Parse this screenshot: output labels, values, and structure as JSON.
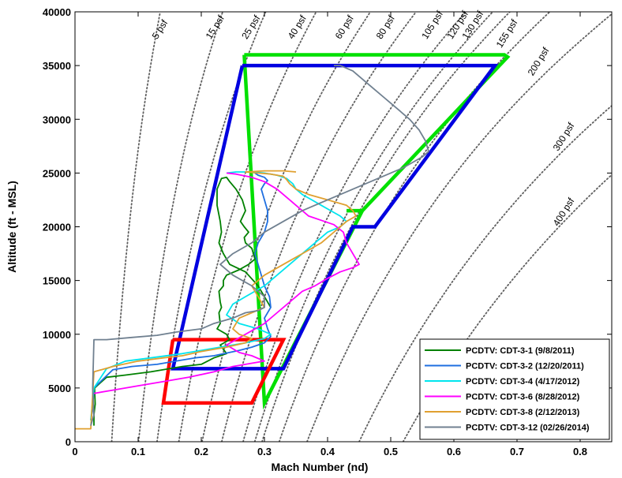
{
  "chart_data": {
    "type": "line",
    "title": "",
    "xlabel": "Mach Number (nd)",
    "ylabel": "Altitude (ft - MSL)",
    "xlim": [
      0,
      0.85
    ],
    "ylim": [
      0,
      40000
    ],
    "xticks": [
      "0",
      "0.1",
      "0.2",
      "0.3",
      "0.4",
      "0.5",
      "0.6",
      "0.7",
      "0.8"
    ],
    "xtick_values": [
      0,
      0.1,
      0.2,
      0.3,
      0.4,
      0.5,
      0.6,
      0.7,
      0.8
    ],
    "yticks": [
      "0",
      "5000",
      "10000",
      "15000",
      "20000",
      "25000",
      "30000",
      "35000",
      "40000"
    ],
    "ytick_values": [
      0,
      5000,
      10000,
      15000,
      20000,
      25000,
      30000,
      35000,
      40000
    ],
    "grid": false,
    "legend_position": "bottom-right",
    "dynamic_pressure_lines": [
      {
        "label": "5 psf",
        "q": 5,
        "label_x": 0.13,
        "label_y": 37400,
        "label_angle": -58
      },
      {
        "label": "15 psf",
        "q": 15,
        "label_x": 0.215,
        "label_y": 37400,
        "label_angle": -58
      },
      {
        "label": "25 psf",
        "q": 25,
        "label_x": 0.272,
        "label_y": 37400,
        "label_angle": -58
      },
      {
        "label": "40 psf",
        "q": 40,
        "label_x": 0.345,
        "label_y": 37400,
        "label_angle": -58
      },
      {
        "label": "60 psf",
        "q": 60,
        "label_x": 0.42,
        "label_y": 37400,
        "label_angle": -58
      },
      {
        "label": "80 psf",
        "q": 80,
        "label_x": 0.485,
        "label_y": 37400,
        "label_angle": -58
      },
      {
        "label": "105 psf",
        "q": 105,
        "label_x": 0.557,
        "label_y": 37400,
        "label_angle": -58
      },
      {
        "label": "120 psf",
        "q": 120,
        "label_x": 0.597,
        "label_y": 37400,
        "label_angle": -58
      },
      {
        "label": "130 psf",
        "q": 130,
        "label_x": 0.621,
        "label_y": 37400,
        "label_angle": -58
      },
      {
        "label": "155 psf",
        "q": 155,
        "label_x": 0.675,
        "label_y": 36600,
        "label_angle": -58
      },
      {
        "label": "200 psf",
        "q": 200,
        "label_x": 0.725,
        "label_y": 34000,
        "label_angle": -58
      },
      {
        "label": "300 psf",
        "q": 300,
        "label_x": 0.765,
        "label_y": 27000,
        "label_angle": -58
      },
      {
        "label": "400 psf",
        "q": 400,
        "label_x": 0.765,
        "label_y": 20000,
        "label_angle": -58
      }
    ],
    "envelopes": [
      {
        "color": "#00e000",
        "x": [
          0.268,
          0.68,
          0.685,
          0.455,
          0.43,
          0.455,
          0.3,
          0.268
        ],
        "y": [
          36000,
          36000,
          35800,
          21500,
          21500,
          21500,
          3600,
          36000
        ]
      },
      {
        "color": "#0000e0",
        "x": [
          0.265,
          0.665,
          0.475,
          0.44,
          0.33,
          0.155,
          0.265
        ],
        "y": [
          35000,
          35000,
          20000,
          20000,
          6800,
          6800,
          35000
        ]
      },
      {
        "color": "#ff0000",
        "x": [
          0.155,
          0.33,
          0.28,
          0.14,
          0.155
        ],
        "y": [
          9500,
          9500,
          3600,
          3600,
          9500
        ]
      }
    ],
    "series": [
      {
        "name": "PCDTV: CDT-3-1 (9/8/2011)",
        "color": "#008000",
        "x": [
          0.03,
          0.03,
          0.032,
          0.031,
          0.05,
          0.08,
          0.12,
          0.17,
          0.2,
          0.22,
          0.24,
          0.235,
          0.23,
          0.245,
          0.24,
          0.225,
          0.23,
          0.228,
          0.232,
          0.23,
          0.228,
          0.235,
          0.235,
          0.24,
          0.26,
          0.275,
          0.285,
          0.28,
          0.27,
          0.268,
          0.275,
          0.268,
          0.262,
          0.27,
          0.265,
          0.255,
          0.245,
          0.24,
          0.232,
          0.225,
          0.225,
          0.23,
          0.232,
          0.228,
          0.235,
          0.245,
          0.27,
          0.29,
          0.3,
          0.31
        ],
        "y": [
          1500,
          2500,
          3500,
          5000,
          6000,
          6200,
          6500,
          7000,
          7200,
          7800,
          8200,
          8600,
          9000,
          9500,
          10000,
          10500,
          11000,
          12000,
          12500,
          13000,
          14000,
          14500,
          15000,
          15500,
          16000,
          16500,
          17000,
          18000,
          18500,
          19000,
          19500,
          20000,
          20500,
          21500,
          22500,
          23500,
          24200,
          24600,
          24500,
          23500,
          22000,
          20500,
          19500,
          18500,
          17500,
          16500,
          15800,
          14500,
          13500,
          12500
        ]
      },
      {
        "name": "PCDTV: CDT-3-2 (12/20/2011)",
        "color": "#1f6fe0",
        "x": [
          0.025,
          0.028,
          0.03,
          0.06,
          0.09,
          0.13,
          0.16,
          0.19,
          0.22,
          0.26,
          0.28,
          0.3,
          0.31,
          0.305,
          0.3,
          0.31,
          0.308,
          0.3,
          0.295,
          0.29,
          0.285,
          0.29,
          0.3,
          0.305,
          0.305,
          0.3,
          0.295,
          0.3,
          0.305,
          0.3,
          0.29,
          0.285
        ],
        "y": [
          2000,
          3000,
          5000,
          6700,
          7000,
          7200,
          7500,
          7800,
          8000,
          8500,
          8800,
          9200,
          9800,
          10500,
          11500,
          12500,
          13500,
          14500,
          15500,
          16500,
          17500,
          18500,
          19500,
          20500,
          21500,
          22500,
          23500,
          24000,
          24300,
          24600,
          24800,
          25000
        ]
      },
      {
        "name": "PCDTV: CDT-3-4 (4/17/2012)",
        "color": "#00e5ee",
        "x": [
          0.025,
          0.03,
          0.05,
          0.08,
          0.12,
          0.17,
          0.2,
          0.23,
          0.27,
          0.3,
          0.31,
          0.29,
          0.26,
          0.24,
          0.25,
          0.27,
          0.3,
          0.32,
          0.34,
          0.36,
          0.38,
          0.4,
          0.42,
          0.43,
          0.42,
          0.405,
          0.39,
          0.375,
          0.36,
          0.35,
          0.345,
          0.335,
          0.32,
          0.3,
          0.28,
          0.255,
          0.24
        ],
        "y": [
          2000,
          5000,
          6800,
          7500,
          7800,
          8200,
          8500,
          8800,
          9200,
          9600,
          10000,
          10500,
          11000,
          11800,
          12800,
          13500,
          14500,
          15500,
          16500,
          17500,
          18500,
          19500,
          20000,
          20500,
          21000,
          21500,
          22000,
          22500,
          23000,
          23500,
          24000,
          24500,
          24800,
          25000,
          25100,
          25100,
          25000
        ]
      },
      {
        "name": "PCDTV: CDT-3-6 (8/28/2012)",
        "color": "#ff00ff",
        "x": [
          0.03,
          0.06,
          0.1,
          0.14,
          0.18,
          0.22,
          0.25,
          0.27,
          0.3,
          0.28,
          0.26,
          0.24,
          0.27,
          0.3,
          0.32,
          0.34,
          0.36,
          0.38,
          0.4,
          0.42,
          0.44,
          0.45,
          0.44,
          0.43,
          0.425,
          0.41,
          0.39,
          0.37,
          0.36,
          0.35,
          0.34,
          0.32,
          0.3,
          0.28,
          0.255,
          0.24
        ],
        "y": [
          4500,
          4800,
          5200,
          5600,
          6000,
          6500,
          7000,
          7200,
          7500,
          8000,
          8300,
          9000,
          10000,
          11000,
          12000,
          13000,
          14000,
          14500,
          15200,
          15800,
          16200,
          16500,
          17500,
          18500,
          19500,
          20200,
          20600,
          21000,
          21500,
          22000,
          22500,
          23500,
          24200,
          24600,
          24900,
          25000
        ]
      },
      {
        "name": "PCDTV: CDT-3-8 (2/12/2013)",
        "color": "#e0a030",
        "x": [
          0.0,
          0.025,
          0.03,
          0.06,
          0.1,
          0.14,
          0.17,
          0.2,
          0.24,
          0.27,
          0.28,
          0.26,
          0.25,
          0.26,
          0.28,
          0.3,
          0.29,
          0.28,
          0.3,
          0.33,
          0.36,
          0.39,
          0.41,
          0.43,
          0.445,
          0.44,
          0.43,
          0.4,
          0.37,
          0.35,
          0.34,
          0.335,
          0.33,
          0.31,
          0.29,
          0.27,
          0.3,
          0.33,
          0.35
        ],
        "y": [
          1200,
          1200,
          6500,
          7000,
          7500,
          7800,
          8000,
          8400,
          8800,
          9200,
          9600,
          10000,
          10500,
          11500,
          12000,
          12500,
          13500,
          14500,
          15500,
          16500,
          17500,
          18500,
          19500,
          20500,
          21000,
          21500,
          22000,
          22500,
          23000,
          23500,
          24000,
          24400,
          24700,
          24900,
          25000,
          25100,
          25200,
          25200,
          25100
        ]
      },
      {
        "name": "PCDTV: CDT-3-12 (02/26/2014)",
        "color": "#708090",
        "x": [
          0.025,
          0.03,
          0.028,
          0.03,
          0.05,
          0.09,
          0.13,
          0.16,
          0.2,
          0.22,
          0.25,
          0.27,
          0.29,
          0.3,
          0.3,
          0.28,
          0.25,
          0.23,
          0.25,
          0.28,
          0.3,
          0.33,
          0.36,
          0.4,
          0.44,
          0.48,
          0.52,
          0.55,
          0.56,
          0.555,
          0.545,
          0.53,
          0.51,
          0.49,
          0.47,
          0.45,
          0.44,
          0.42,
          0.41
        ],
        "y": [
          1500,
          2500,
          5000,
          9500,
          9500,
          9700,
          9900,
          10200,
          10500,
          11000,
          11500,
          12000,
          12200,
          12500,
          13500,
          14500,
          15500,
          16500,
          17500,
          18500,
          19500,
          20500,
          21500,
          22500,
          23500,
          24500,
          25500,
          26500,
          27000,
          28000,
          29000,
          30000,
          31000,
          32000,
          33000,
          34000,
          34500,
          35000,
          35000
        ]
      }
    ]
  }
}
